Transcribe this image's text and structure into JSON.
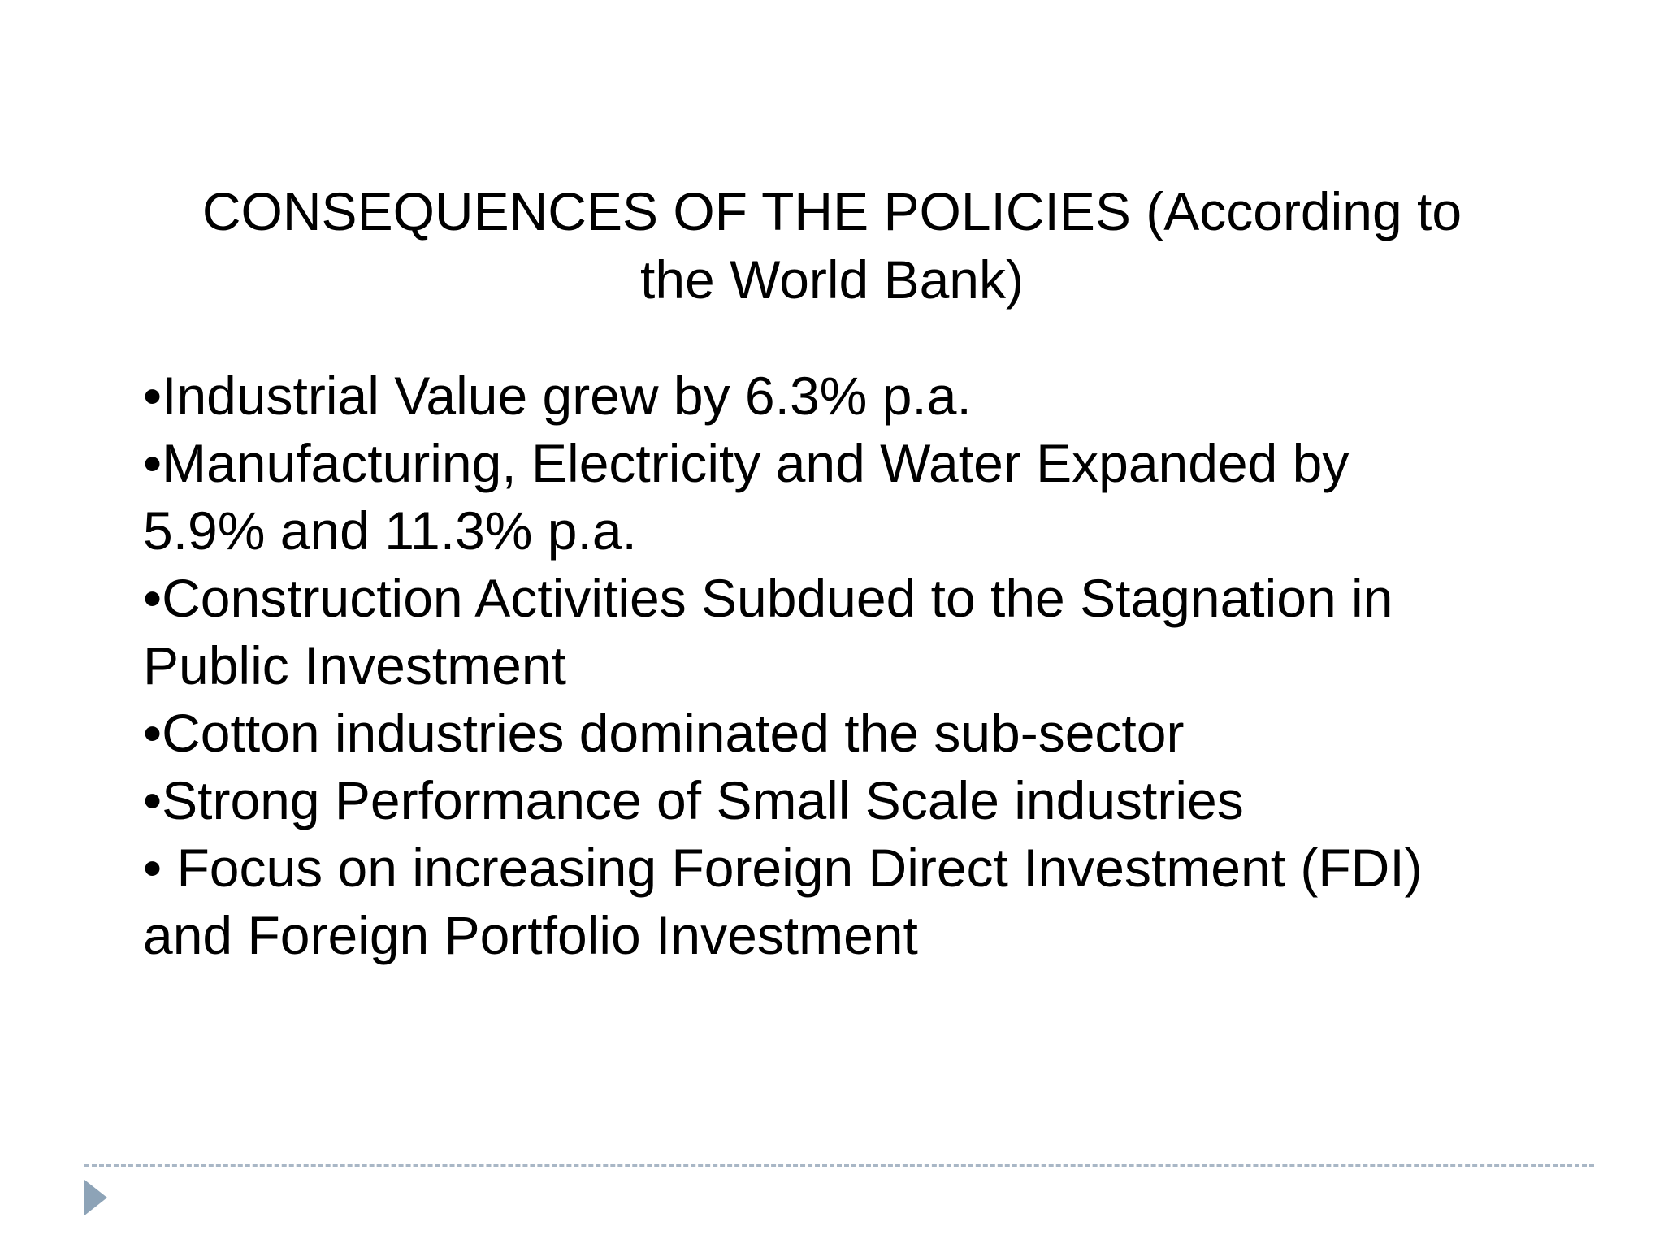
{
  "slide": {
    "title_lines": [
      "CONSEQUENCES OF THE POLICIES (According to",
      "the World Bank)"
    ],
    "bullets": [
      "•Industrial Value grew by 6.3% p.a.",
      "•Manufacturing, Electricity and Water Expanded by\n5.9% and 11.3% p.a.",
      "•Construction Activities Subdued to the Stagnation in\nPublic Investment",
      "•Cotton industries dominated the sub-sector",
      "•Strong Performance of Small Scale industries",
      "• Focus on increasing Foreign Direct Investment (FDI)\nand Foreign Portfolio Investment"
    ]
  },
  "footer": {
    "icon": "triangle-right-icon",
    "accent_color": "#8da3b7",
    "rule_color": "#a9b7c6"
  }
}
